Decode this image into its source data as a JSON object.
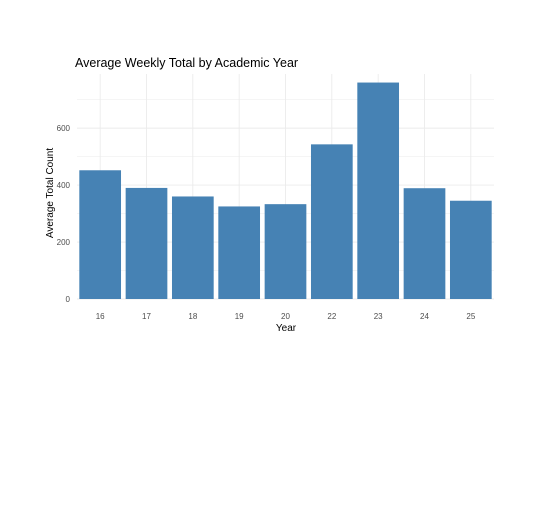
{
  "chart_data": {
    "type": "bar",
    "title": "Average Weekly Total by Academic Year",
    "xlabel": "Year",
    "ylabel": "Average Total Count",
    "categories": [
      "16",
      "17",
      "18",
      "19",
      "20",
      "22",
      "23",
      "24",
      "25"
    ],
    "values": [
      452,
      390,
      360,
      325,
      333,
      543,
      760,
      389,
      345
    ],
    "yticks": [
      "0",
      "200",
      "400",
      "600"
    ],
    "ylim": [
      0,
      790
    ],
    "grid": true,
    "legend": "none",
    "bar_color": "#4682B4",
    "grid_color": "#ebebeb",
    "background_color": "#ffffff"
  }
}
